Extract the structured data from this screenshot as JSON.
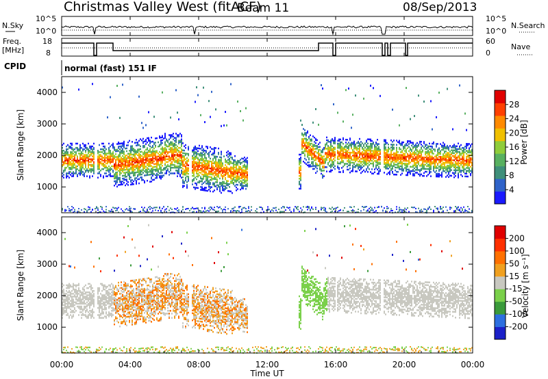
{
  "header": {
    "station": "Christmas Valley West (fitACF)",
    "beam": "Beam 11",
    "date": "08/Sep/2013"
  },
  "cpid": {
    "label": "CPID",
    "value": "normal (fast) 151 IF"
  },
  "nsky_panel": {
    "left_label": "N.Sky",
    "right_label": "N.Search",
    "left_ticks": [
      "10^5",
      "10^0"
    ],
    "right_ticks": [
      "10^5",
      "10^0"
    ]
  },
  "freq_panel": {
    "left_label_1": "Freq.",
    "left_label_2": "[MHz]",
    "right_label": "Nave",
    "left_ticks": [
      "18",
      "8"
    ],
    "right_ticks": [
      "60",
      "0"
    ]
  },
  "chart_data": [
    {
      "type": "heatmap",
      "title": "Power",
      "ylabel": "Slant Range [km]",
      "ylim": [
        180,
        4500
      ],
      "yticks": [
        1000,
        2000,
        3000,
        4000
      ],
      "xlim": [
        "00:00",
        "24:00"
      ],
      "colorbar": {
        "label": "Power [dB]",
        "ticks": [
          4,
          8,
          12,
          16,
          20,
          24,
          28
        ],
        "range": [
          0,
          30
        ],
        "colors": [
          "#1a1aff",
          "#2f63c9",
          "#3f8f7a",
          "#58b060",
          "#8fcc3a",
          "#f0c000",
          "#ff8a00",
          "#ff4000",
          "#e00000"
        ]
      }
    },
    {
      "type": "heatmap",
      "title": "Velocity",
      "ylabel": "Slant Range [km]",
      "ylim": [
        180,
        4500
      ],
      "yticks": [
        1000,
        2000,
        3000,
        4000
      ],
      "xlim": [
        "00:00",
        "24:00"
      ],
      "colorbar": {
        "label": "Velocity [m s⁻¹]",
        "ticks": [
          200,
          100,
          50,
          15,
          -15,
          -50,
          -100,
          -200
        ],
        "colors": [
          "#1b20c8",
          "#2d6fe0",
          "#3a9a3a",
          "#7ad04a",
          "#c8c8c0",
          "#f0a020",
          "#ff7000",
          "#ff3000",
          "#e00000"
        ]
      }
    }
  ],
  "time_axis": {
    "label": "Time UT",
    "ticks": [
      "00:00",
      "04:00",
      "08:00",
      "12:00",
      "16:00",
      "20:00",
      "00:00"
    ]
  }
}
